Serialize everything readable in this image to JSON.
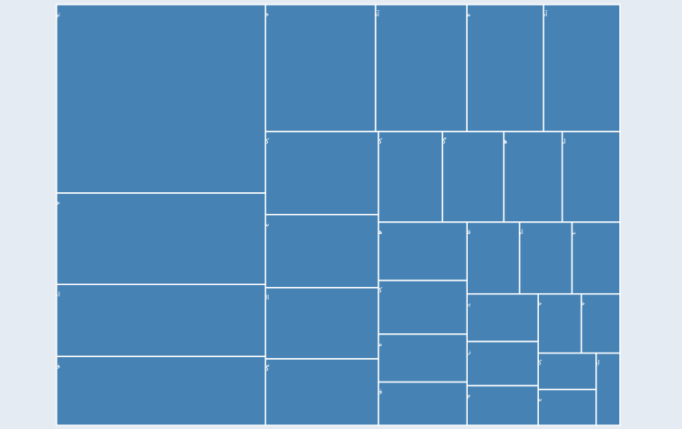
{
  "chart_data": {
    "type": "treemap",
    "colors": {
      "cell": "#4682b4",
      "border": "#ffffff",
      "background": "#e5ebf2",
      "label": "#ffffff"
    },
    "cells": [
      {
        "label": "تهران",
        "value": 13.27
      },
      {
        "label": "خراسان رضوی",
        "value": 6.43
      },
      {
        "label": "اصفهان",
        "value": 5.07
      },
      {
        "label": "فارس",
        "value": 4.85
      },
      {
        "label": "خوزستان",
        "value": 4.71
      },
      {
        "label": "آذربایجان شرقی",
        "value": 3.91
      },
      {
        "label": "مازندران",
        "value": 3.28
      },
      {
        "label": "آذربایجان غربی",
        "value": 3.27
      },
      {
        "label": "کرمان",
        "value": 3.16
      },
      {
        "label": "سیستان و بلوچستان",
        "value": 2.78
      },
      {
        "label": "البرز",
        "value": 2.71
      },
      {
        "label": "گیلان",
        "value": 2.53
      },
      {
        "label": "کرمانشاه",
        "value": 1.95
      },
      {
        "label": "گلستان",
        "value": 1.87
      },
      {
        "label": "هرمزگان",
        "value": 1.78
      },
      {
        "label": "لرستان",
        "value": 1.76
      },
      {
        "label": "همدان",
        "value": 1.74
      },
      {
        "label": "کردستان",
        "value": 1.6
      },
      {
        "label": "مرکزی",
        "value": 1.43
      },
      {
        "label": "قم",
        "value": 1.29
      },
      {
        "label": "قزوین",
        "value": 1.27
      },
      {
        "label": "اردبیل",
        "value": 1.27
      },
      {
        "label": "بوشهر",
        "value": 1.16
      },
      {
        "label": "یزد",
        "value": 1.14
      },
      {
        "label": "زنجان",
        "value": 1.06
      },
      {
        "label": "چهارمحال و بختیاری",
        "value": 0.95
      },
      {
        "label": "خراسان شمالی",
        "value": 0.86
      },
      {
        "label": "خراسان جنوبی",
        "value": 0.77
      },
      {
        "label": "کهگیلویه و بویراحمد",
        "value": 0.71
      },
      {
        "label": "سمنان",
        "value": 0.7
      },
      {
        "label": "ایلام",
        "value": 0.58
      }
    ]
  }
}
